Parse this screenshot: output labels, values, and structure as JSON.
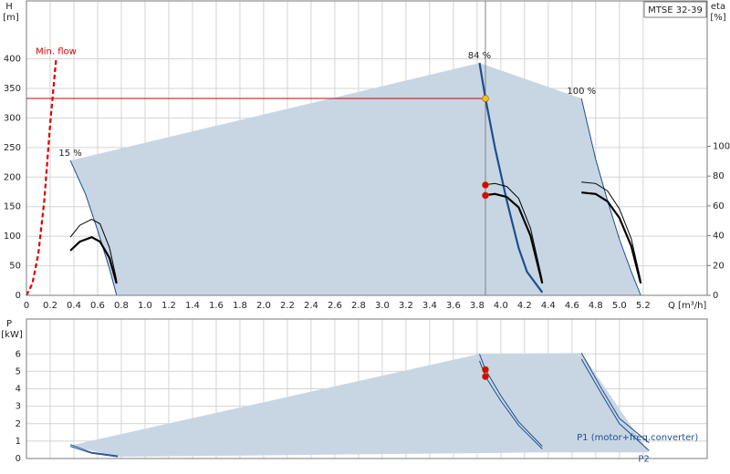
{
  "chart_data": [
    {
      "type": "line",
      "title": "MTSE 32-39",
      "xlabel": "Q [m³/h]",
      "ylabel": "H",
      "yunit": "[m]",
      "y2label": "eta",
      "y2unit": "[%]",
      "xlim": [
        0,
        5.74
      ],
      "ylim": [
        0,
        498
      ],
      "y2lim": [
        0,
        197.5
      ],
      "xticks": [
        0,
        0.2,
        0.4,
        0.6,
        0.8,
        {
          "value": 1,
          "label": "1.0"
        },
        1.2,
        1.4,
        1.6,
        1.8,
        {
          "value": 2,
          "label": "2.0"
        },
        2.2,
        2.4,
        2.6,
        2.8,
        {
          "value": 3,
          "label": "3.0"
        },
        3.2,
        3.4,
        3.6,
        3.8,
        {
          "value": 4,
          "label": "4.0"
        },
        4.2,
        4.4,
        4.6,
        4.8,
        {
          "value": 5,
          "label": "5.0"
        },
        5.2
      ],
      "yticks": [
        0,
        50,
        100,
        150,
        200,
        250,
        300,
        350,
        400
      ],
      "y2ticks": [
        0,
        20,
        40,
        60,
        80,
        100
      ],
      "grid": true,
      "series": [
        {
          "fill": "#c8d6e4",
          "x": [
            0.37,
            3.82,
            4.68,
            4.8,
            4.9,
            5.0,
            5.1,
            5.18,
            0.76,
            0.7,
            0.6,
            0.5
          ],
          "values": [
            228,
            393,
            333,
            230,
            160,
            95,
            40,
            0,
            0,
            45,
            110,
            170
          ]
        },
        {
          "color": "#e00000",
          "dash": true,
          "weight": "thick",
          "label": "Min. flow",
          "label_pos": "peak",
          "x": [
            0,
            0.05,
            0.1,
            0.15,
            0.2,
            0.25
          ],
          "values": [
            0,
            20,
            70,
            160,
            290,
            400
          ]
        },
        {
          "color": "#d00000",
          "weight": "thin",
          "x": [
            0,
            3.87
          ],
          "values": [
            333,
            333
          ]
        },
        {
          "color": "#808080",
          "weight": "thin",
          "x": [
            3.87,
            3.87
          ],
          "values": [
            0,
            498
          ]
        },
        {
          "color": "#1f4e8c",
          "weight": "thin",
          "label": "15 %",
          "label_pos": "peak",
          "x": [
            0.37,
            0.5,
            0.6,
            0.7,
            0.76
          ],
          "values": [
            228,
            170,
            110,
            45,
            0
          ]
        },
        {
          "color": "#1f4e8c",
          "weight": "thick",
          "label": "84 %",
          "label_pos": "peak",
          "x": [
            3.82,
            3.87,
            3.95,
            4.05,
            4.15,
            4.22,
            4.35
          ],
          "values": [
            393,
            333,
            250,
            160,
            80,
            40,
            5
          ]
        },
        {
          "color": "#1f4e8c",
          "weight": "thin",
          "label": "100 %",
          "label_pos": "peak",
          "x": [
            4.68,
            4.8,
            4.9,
            5.0,
            5.1,
            5.18
          ],
          "values": [
            333,
            230,
            160,
            95,
            40,
            0
          ]
        },
        {
          "color": "#000000",
          "weight": "thin",
          "axis": "y2",
          "x": [
            0.37,
            0.45,
            0.55,
            0.62,
            0.7,
            0.76
          ],
          "values": [
            39,
            47,
            51,
            48,
            32,
            10
          ]
        },
        {
          "color": "#000000",
          "weight": "thick",
          "axis": "y2",
          "x": [
            0.37,
            0.45,
            0.55,
            0.62,
            0.7,
            0.76
          ],
          "values": [
            30,
            36,
            39,
            36,
            25,
            8
          ]
        },
        {
          "color": "#000000",
          "weight": "thin",
          "axis": "y2",
          "x": [
            3.85,
            3.95,
            4.05,
            4.15,
            4.25,
            4.35
          ],
          "values": [
            74,
            75,
            73,
            65,
            45,
            10
          ]
        },
        {
          "color": "#000000",
          "weight": "thick",
          "axis": "y2",
          "x": [
            3.85,
            3.95,
            4.05,
            4.15,
            4.25,
            4.35
          ],
          "values": [
            67,
            68,
            66,
            59,
            40,
            8
          ]
        },
        {
          "color": "#000000",
          "weight": "thin",
          "axis": "y2",
          "x": [
            4.68,
            4.8,
            4.9,
            5.0,
            5.1,
            5.18
          ],
          "values": [
            76,
            75,
            70,
            58,
            38,
            10
          ]
        },
        {
          "color": "#000000",
          "weight": "thick",
          "axis": "y2",
          "x": [
            4.68,
            4.8,
            4.9,
            5.0,
            5.1,
            5.18
          ],
          "values": [
            69,
            68,
            63,
            52,
            33,
            8
          ]
        },
        {
          "marker": true,
          "color": "#f5c400",
          "x": [
            3.87
          ],
          "values": [
            333
          ]
        },
        {
          "marker": true,
          "color": "#e00000",
          "axis": "y2",
          "x": [
            3.87,
            3.87
          ],
          "values": [
            74,
            67
          ]
        }
      ]
    },
    {
      "type": "line",
      "ylabel": "P",
      "yunit": "[kW]",
      "xlim": [
        0,
        5.74
      ],
      "ylim": [
        0,
        8
      ],
      "yticks": [
        0,
        1,
        2,
        3,
        4,
        5,
        6
      ],
      "grid": true,
      "series": [
        {
          "fill": "#c8d6e4",
          "x": [
            0.37,
            3.82,
            4.68,
            5.25,
            4.4,
            0.77
          ],
          "values": [
            0.75,
            6.0,
            6.05,
            0.35,
            0.35,
            0.1
          ]
        },
        {
          "color": "#1f4e8c",
          "weight": "thin",
          "x": [
            0.37,
            0.55,
            0.77
          ],
          "values": [
            0.8,
            0.35,
            0.15
          ]
        },
        {
          "color": "#1f4e8c",
          "weight": "thin",
          "x": [
            0.37,
            0.55,
            0.77
          ],
          "values": [
            0.7,
            0.3,
            0.1
          ]
        },
        {
          "color": "#1f4e8c",
          "weight": "thin",
          "x": [
            3.82,
            3.87,
            4.0,
            4.15,
            4.35
          ],
          "values": [
            6.0,
            5.1,
            3.6,
            2.1,
            0.7
          ]
        },
        {
          "color": "#1f4e8c",
          "weight": "thin",
          "x": [
            3.82,
            3.87,
            4.0,
            4.15,
            4.35
          ],
          "values": [
            5.6,
            4.7,
            3.3,
            1.9,
            0.55
          ]
        },
        {
          "color": "#1f4e8c",
          "weight": "thin",
          "label": "P1 (motor+freq.converter)",
          "label_pos": "end",
          "x": [
            4.68,
            4.85,
            5.0,
            5.25
          ],
          "values": [
            6.05,
            4.0,
            2.3,
            0.9
          ]
        },
        {
          "color": "#1f4e8c",
          "weight": "thin",
          "label": "P2",
          "label_pos": "below",
          "x": [
            4.68,
            4.85,
            5.0,
            5.25
          ],
          "values": [
            5.7,
            3.7,
            2.0,
            0.45
          ]
        },
        {
          "marker": true,
          "color": "#e00000",
          "x": [
            3.87,
            3.87
          ],
          "values": [
            5.1,
            4.7
          ]
        }
      ]
    }
  ]
}
